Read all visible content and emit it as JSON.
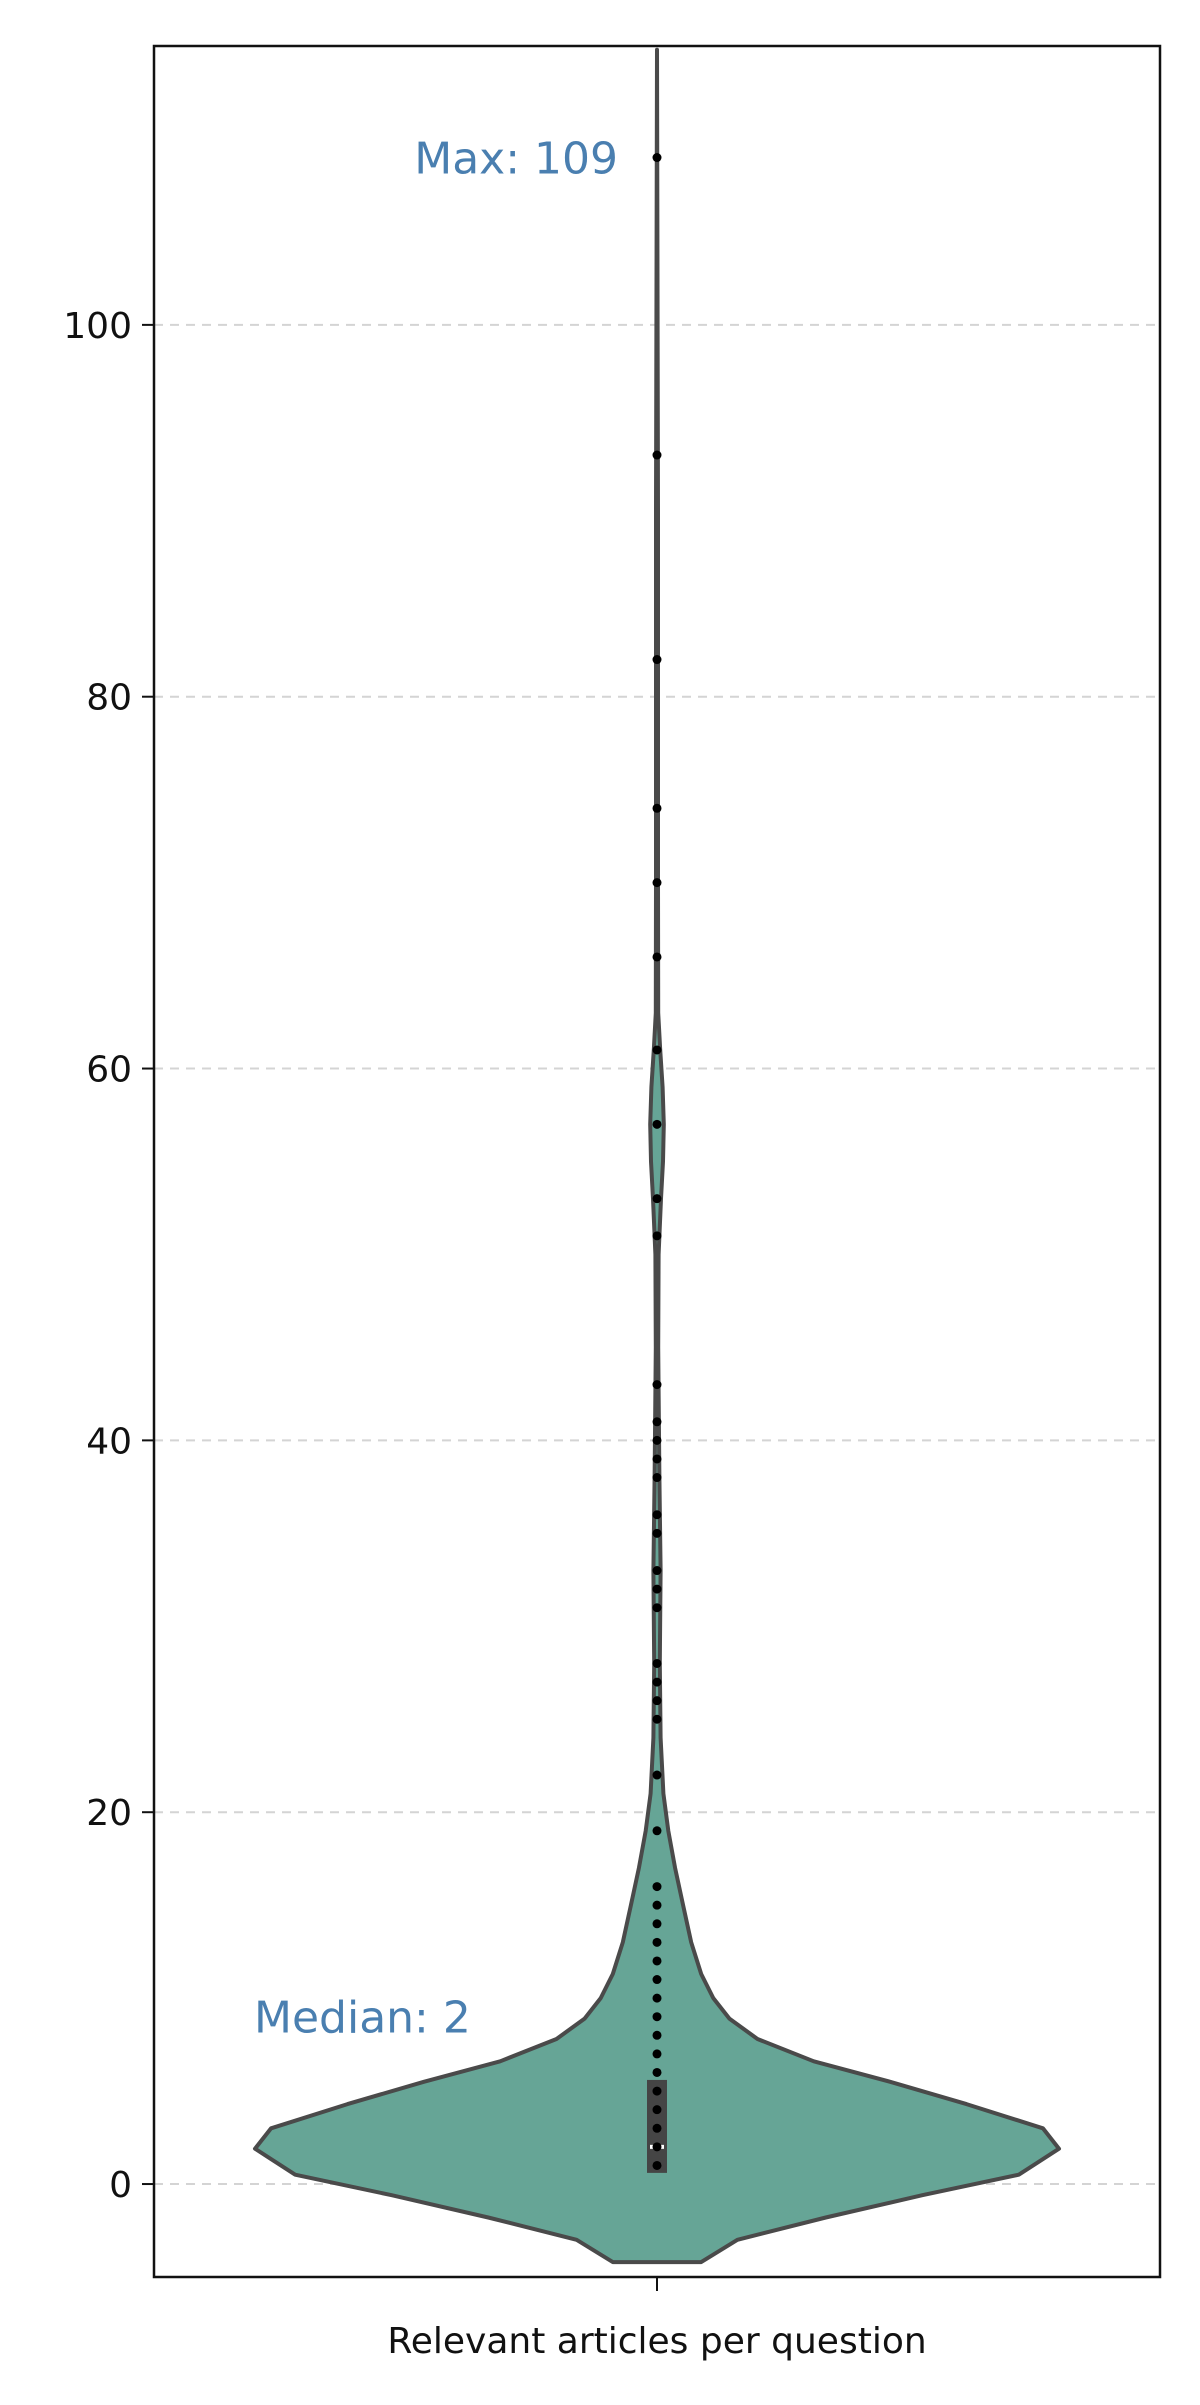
{
  "chart_data": {
    "type": "violin",
    "title": "",
    "xlabel": "Relevant articles per question",
    "ylabel": "",
    "ylim": [
      -5,
      115
    ],
    "yticks": [
      0,
      20,
      40,
      60,
      80,
      100
    ],
    "grid": "horizontal dashed",
    "colors": {
      "violin_fill": "#66a596",
      "violin_stroke": "#4a4a4a",
      "box": "#454545",
      "median": "#ffffff",
      "points": "#000000",
      "annotation": "#4a7fb0",
      "grid": "#d4d4d4"
    },
    "violin_profile": [
      {
        "y": -4.2,
        "w": 0.0
      },
      {
        "y": -4.2,
        "w": 0.11
      },
      {
        "y": -3.0,
        "w": 0.2
      },
      {
        "y": -1.8,
        "w": 0.42
      },
      {
        "y": -0.6,
        "w": 0.66
      },
      {
        "y": 0.5,
        "w": 0.9
      },
      {
        "y": 1.9,
        "w": 1.0
      },
      {
        "y": 3.0,
        "w": 0.96
      },
      {
        "y": 4.3,
        "w": 0.77
      },
      {
        "y": 5.5,
        "w": 0.58
      },
      {
        "y": 6.6,
        "w": 0.39
      },
      {
        "y": 7.8,
        "w": 0.25
      },
      {
        "y": 8.9,
        "w": 0.18
      },
      {
        "y": 10.0,
        "w": 0.14
      },
      {
        "y": 11.3,
        "w": 0.11
      },
      {
        "y": 13.0,
        "w": 0.085
      },
      {
        "y": 15.0,
        "w": 0.065
      },
      {
        "y": 17.0,
        "w": 0.045
      },
      {
        "y": 19.0,
        "w": 0.028
      },
      {
        "y": 21.0,
        "w": 0.016
      },
      {
        "y": 24.0,
        "w": 0.009
      },
      {
        "y": 28.0,
        "w": 0.007
      },
      {
        "y": 33.0,
        "w": 0.009
      },
      {
        "y": 38.0,
        "w": 0.006
      },
      {
        "y": 45.0,
        "w": 0.003
      },
      {
        "y": 50.0,
        "w": 0.004
      },
      {
        "y": 53.0,
        "w": 0.01
      },
      {
        "y": 55.0,
        "w": 0.015
      },
      {
        "y": 57.0,
        "w": 0.017
      },
      {
        "y": 59.0,
        "w": 0.014
      },
      {
        "y": 61.0,
        "w": 0.008
      },
      {
        "y": 63.0,
        "w": 0.003
      },
      {
        "y": 70.0,
        "w": 0.0025
      },
      {
        "y": 90.0,
        "w": 0.0025
      },
      {
        "y": 114.8,
        "w": 0.0
      }
    ],
    "points": [
      1,
      2,
      3,
      4,
      5,
      6,
      7,
      8,
      9,
      10,
      11,
      12,
      13,
      14,
      15,
      16,
      19,
      22,
      25,
      26,
      27,
      28,
      31,
      32,
      33,
      35,
      36,
      38,
      39,
      40,
      41,
      43,
      51,
      53,
      57,
      61,
      66,
      70,
      74,
      82,
      93,
      109
    ],
    "box": {
      "q1": 0.6,
      "q3": 5.6,
      "median": 2
    },
    "annotations": [
      {
        "text": "Max: 109",
        "y": 109,
        "side": "left-of-max"
      },
      {
        "text": "Median: 2",
        "y": 9,
        "side": "left"
      }
    ]
  }
}
